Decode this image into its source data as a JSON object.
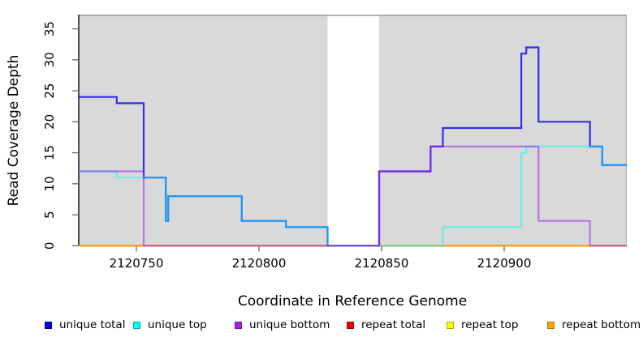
{
  "chart_data": {
    "type": "step-line",
    "title": "",
    "xlabel": "Coordinate in Reference Genome",
    "ylabel": "Read Coverage Depth",
    "xlim": [
      2120726.5,
      2120950
    ],
    "ylim": [
      0,
      37.3
    ],
    "x_ticks": [
      2120750,
      2120800,
      2120850,
      2120900
    ],
    "y_ticks": [
      0,
      5,
      10,
      15,
      20,
      25,
      30,
      35
    ],
    "grid": false,
    "background_color": "#FFFFFF",
    "shaded_region_color": "#D9D9D9",
    "shaded_regions": [
      [
        2120726.5,
        2120828
      ],
      [
        2120849,
        2120950
      ]
    ],
    "unshaded_gap": [
      2120828,
      2120849
    ],
    "legend_position": "bottom",
    "series": [
      {
        "name": "unique total",
        "color": "#0000EE",
        "opacity": 0.78,
        "z": 4,
        "steps": [
          [
            2120726.5,
            24
          ],
          [
            2120742,
            23
          ],
          [
            2120753,
            11
          ],
          [
            2120762,
            4
          ],
          [
            2120763,
            8
          ],
          [
            2120793,
            4
          ],
          [
            2120811,
            3
          ],
          [
            2120828,
            0
          ],
          [
            2120849,
            12
          ],
          [
            2120870,
            16
          ],
          [
            2120875,
            19
          ],
          [
            2120907,
            31
          ],
          [
            2120909,
            32
          ],
          [
            2120914,
            20
          ],
          [
            2120935,
            16
          ],
          [
            2120940,
            13
          ]
        ],
        "end": 2120950
      },
      {
        "name": "unique top",
        "color": "#00FFFF",
        "opacity": 0.5,
        "z": 5,
        "steps": [
          [
            2120726.5,
            12
          ],
          [
            2120742,
            11
          ],
          [
            2120762,
            4
          ],
          [
            2120763,
            8
          ],
          [
            2120793,
            4
          ],
          [
            2120811,
            3
          ],
          [
            2120828,
            0
          ],
          [
            2120875,
            3
          ],
          [
            2120907,
            15
          ],
          [
            2120909,
            16
          ],
          [
            2120940,
            13
          ]
        ],
        "end": 2120950
      },
      {
        "name": "unique bottom",
        "color": "#A020F0",
        "opacity": 0.55,
        "z": 6,
        "steps": [
          [
            2120726.5,
            12
          ],
          [
            2120753,
            0
          ],
          [
            2120849,
            12
          ],
          [
            2120870,
            16
          ],
          [
            2120914,
            4
          ],
          [
            2120935,
            0
          ]
        ],
        "end": 2120950
      },
      {
        "name": "repeat total",
        "color": "#EE0000",
        "opacity": 0.5,
        "z": 1,
        "steps": [
          [
            2120726.5,
            0
          ]
        ],
        "end": 2120950
      },
      {
        "name": "repeat top",
        "color": "#FFFF00",
        "opacity": 0.5,
        "z": 2,
        "steps": [
          [
            2120726.5,
            0
          ]
        ],
        "end": 2120950
      },
      {
        "name": "repeat bottom",
        "color": "#FFA500",
        "opacity": 0.65,
        "z": 3,
        "steps": [
          [
            2120726.5,
            0
          ]
        ],
        "end": 2120950
      }
    ]
  },
  "legend": {
    "items": [
      {
        "label": "unique total",
        "fill": "#0000EE",
        "border": "#0000A0"
      },
      {
        "label": "unique top",
        "fill": "#00FFFF",
        "border": "#00A5A5"
      },
      {
        "label": "unique bottom",
        "fill": "#A020F0",
        "border": "#6C15A3"
      },
      {
        "label": "repeat total",
        "fill": "#EE0000",
        "border": "#A00000"
      },
      {
        "label": "repeat top",
        "fill": "#FFFF00",
        "border": "#ABAB00"
      },
      {
        "label": "repeat bottom",
        "fill": "#FFA500",
        "border": "#B27300"
      }
    ]
  },
  "axes": {
    "xlabel": "Coordinate in Reference Genome",
    "ylabel": "Read Coverage Depth"
  }
}
